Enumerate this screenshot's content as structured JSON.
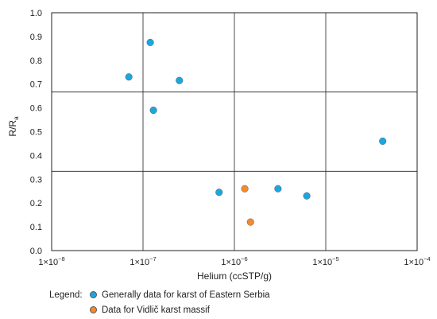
{
  "chart_data": {
    "type": "scatter",
    "xscale": "log",
    "xlabel": "Helium (ccSTP/g)",
    "ylabel": "R/R",
    "ylabel_subscript": "a",
    "xlim": [
      "1e-8",
      "1e-4"
    ],
    "ylim": [
      0,
      1.0
    ],
    "grid": true,
    "x_tick_labels": [
      {
        "base": "1×10",
        "exp": "−8"
      },
      {
        "base": "1×10",
        "exp": "−7"
      },
      {
        "base": "1×10",
        "exp": "−6"
      },
      {
        "base": "1×10",
        "exp": "−5"
      },
      {
        "base": "1×10",
        "exp": "−4"
      }
    ],
    "y_tick_labels": [
      "0.0",
      "0.1",
      "0.2",
      "0.3",
      "0.4",
      "0.5",
      "0.6",
      "0.7",
      "0.8",
      "0.9",
      "1.0"
    ],
    "legend_title": "Legend:",
    "series": [
      {
        "name": "Generally data for karst of Eastern Serbia",
        "color": "#1aa7e0",
        "points": [
          {
            "x": 7e-08,
            "y": 0.73
          },
          {
            "x": 1.2e-07,
            "y": 0.875
          },
          {
            "x": 1.3e-07,
            "y": 0.59
          },
          {
            "x": 2.5e-07,
            "y": 0.715
          },
          {
            "x": 6.8e-07,
            "y": 0.245
          },
          {
            "x": 3e-06,
            "y": 0.26
          },
          {
            "x": 6.2e-06,
            "y": 0.23
          },
          {
            "x": 4.2e-05,
            "y": 0.46
          }
        ]
      },
      {
        "name": "Data for Vidlič karst massif",
        "color": "#f28a2e",
        "points": [
          {
            "x": 1.3e-06,
            "y": 0.26
          },
          {
            "x": 1.5e-06,
            "y": 0.12
          }
        ]
      }
    ]
  }
}
